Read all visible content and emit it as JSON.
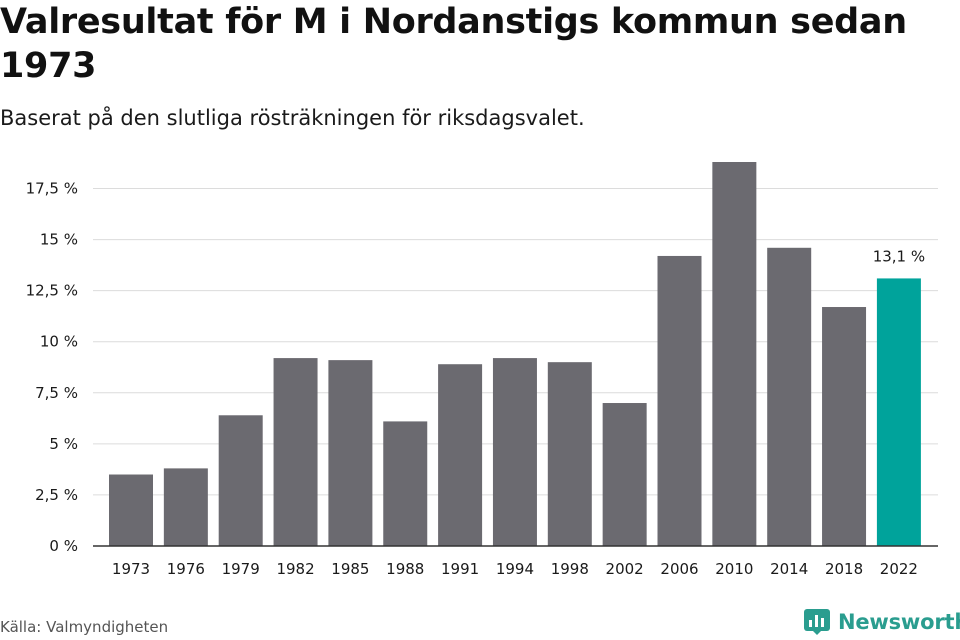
{
  "header": {
    "title": "Valresultat för M i Nordanstigs kommun sedan 1973",
    "subtitle": "Baserat på den slutliga rösträkningen för riksdagsvalet."
  },
  "footer": {
    "source": "Källa: Valmyndigheten",
    "brand": "Newsworthy",
    "brand_icon": "newsworthy-logo-icon"
  },
  "colors": {
    "bar": "#6b6a70",
    "highlight": "#00a39b",
    "grid": "#dcdcdc",
    "axis": "#333333",
    "brand": "#2a9d8f"
  },
  "chart_data": {
    "type": "bar",
    "title": "Valresultat för M i Nordanstigs kommun sedan 1973",
    "subtitle": "Baserat på den slutliga rösträkningen för riksdagsvalet.",
    "xlabel": "",
    "ylabel": "",
    "categories": [
      "1973",
      "1976",
      "1979",
      "1982",
      "1985",
      "1988",
      "1991",
      "1994",
      "1998",
      "2002",
      "2006",
      "2010",
      "2014",
      "2018",
      "2022"
    ],
    "values": [
      3.5,
      3.8,
      6.4,
      9.2,
      9.1,
      6.1,
      8.9,
      9.2,
      9.0,
      7.0,
      14.2,
      18.8,
      14.6,
      11.7,
      13.1
    ],
    "ylim": [
      0,
      18.8
    ],
    "yticks": [
      0,
      2.5,
      5,
      7.5,
      10,
      12.5,
      15,
      17.5
    ],
    "ytick_labels": [
      "0 %",
      "2,5 %",
      "5 %",
      "7,5 %",
      "10 %",
      "12,5 %",
      "15 %",
      "17,5 %"
    ],
    "highlight_index": 14,
    "annotations": [
      {
        "category": "2022",
        "text": "13,1 %"
      }
    ],
    "grid": true,
    "legend": "none"
  }
}
